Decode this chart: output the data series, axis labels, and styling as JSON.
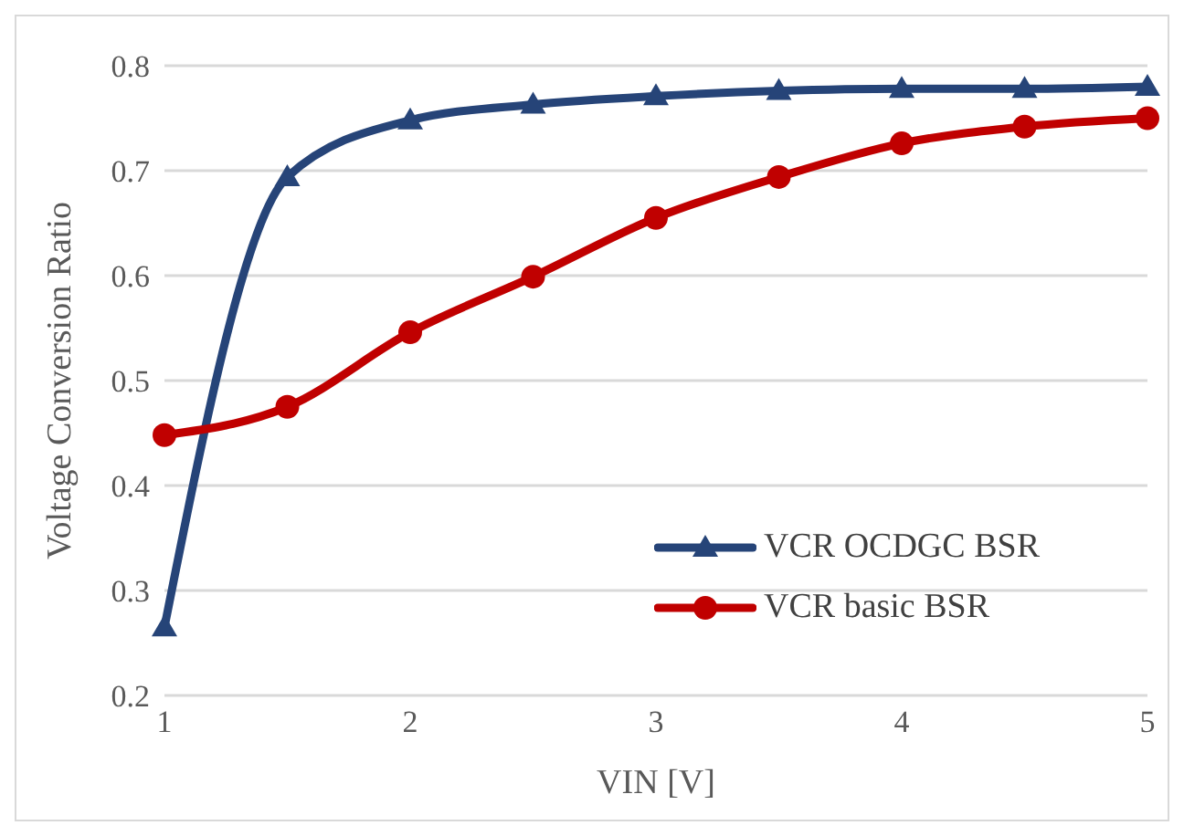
{
  "chart_data": {
    "type": "line",
    "xlabel": "VIN [V]",
    "ylabel": "Voltage Conversion Ratio",
    "categories": [
      "1",
      null,
      "2",
      null,
      "3",
      null,
      "4",
      null,
      "5"
    ],
    "series": [
      {
        "name": "VCR OCDGC BSR",
        "color": "#264478",
        "marker": "triangle",
        "values": [
          0.265,
          0.694,
          0.748,
          0.763,
          0.771,
          0.776,
          0.778,
          0.778,
          0.78
        ]
      },
      {
        "name": "VCR basic BSR",
        "color": "#c00000",
        "marker": "circle",
        "values": [
          0.448,
          0.475,
          0.546,
          0.599,
          0.655,
          0.694,
          0.726,
          0.742,
          0.75
        ]
      }
    ],
    "ylim": [
      0.2,
      0.8
    ],
    "yticks": [
      0.2,
      0.3,
      0.4,
      0.5,
      0.6,
      0.7,
      0.8
    ],
    "grid": "y",
    "legend": "bottom right",
    "line_style": "solid"
  }
}
